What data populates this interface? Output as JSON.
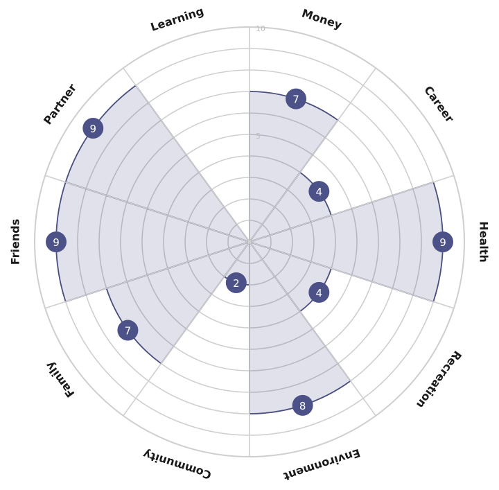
{
  "chart_data": {
    "type": "polar-area",
    "categories": [
      "Money",
      "Career",
      "Health",
      "Recreation",
      "Environment",
      "Community",
      "Family",
      "Friends",
      "Partner",
      "Learning"
    ],
    "values": [
      7,
      4,
      9,
      4,
      8,
      2,
      7,
      9,
      9,
      0
    ],
    "scale": {
      "min": 0,
      "max": 10,
      "rings": 10,
      "tick_labels": [
        "5",
        "10"
      ]
    },
    "colors": {
      "fill": "#e3e4ee",
      "stroke": "#4a4f80",
      "badge": "#4c5187",
      "grid": "#cfcfcf"
    }
  }
}
